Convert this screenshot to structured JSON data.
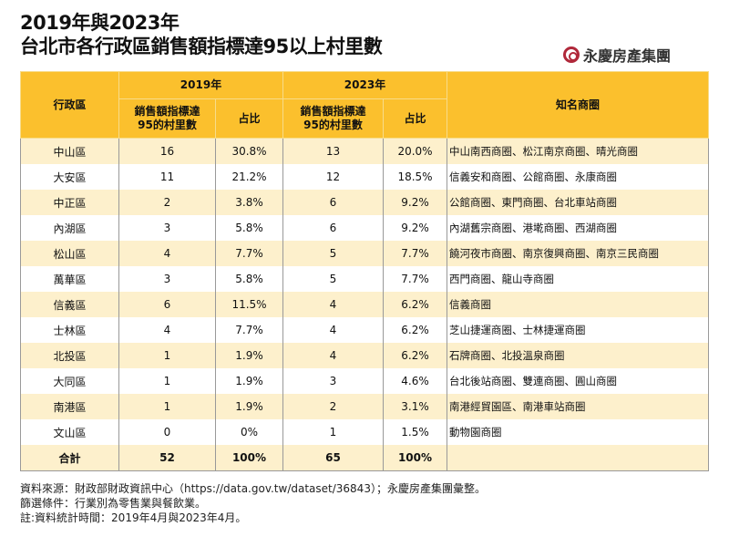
{
  "title": {
    "line1": "2019年與2023年",
    "line2": "台北市各行政區銷售額指標達95以上村里數"
  },
  "logo": {
    "text": "永慶房產集團"
  },
  "table": {
    "headers": {
      "district": "行政區",
      "year1": "2019年",
      "year2": "2023年",
      "count": "銷售額指標達95的村里數",
      "share": "占比",
      "circles": "知名商圈"
    },
    "rows": [
      {
        "district": "中山區",
        "c2019": "16",
        "s2019": "30.8%",
        "c2023": "13",
        "s2023": "20.0%",
        "circles": "中山南西商圈、松江南京商圈、晴光商圈"
      },
      {
        "district": "大安區",
        "c2019": "11",
        "s2019": "21.2%",
        "c2023": "12",
        "s2023": "18.5%",
        "circles": "信義安和商圈、公館商圈、永康商圈"
      },
      {
        "district": "中正區",
        "c2019": "2",
        "s2019": "3.8%",
        "c2023": "6",
        "s2023": "9.2%",
        "circles": "公館商圈、東門商圈、台北車站商圈"
      },
      {
        "district": "內湖區",
        "c2019": "3",
        "s2019": "5.8%",
        "c2023": "6",
        "s2023": "9.2%",
        "circles": "內湖舊宗商圈、港墘商圈、西湖商圈"
      },
      {
        "district": "松山區",
        "c2019": "4",
        "s2019": "7.7%",
        "c2023": "5",
        "s2023": "7.7%",
        "circles": "饒河夜市商圈、南京復興商圈、南京三民商圈"
      },
      {
        "district": "萬華區",
        "c2019": "3",
        "s2019": "5.8%",
        "c2023": "5",
        "s2023": "7.7%",
        "circles": "西門商圈、龍山寺商圈"
      },
      {
        "district": "信義區",
        "c2019": "6",
        "s2019": "11.5%",
        "c2023": "4",
        "s2023": "6.2%",
        "circles": "信義商圈"
      },
      {
        "district": "士林區",
        "c2019": "4",
        "s2019": "7.7%",
        "c2023": "4",
        "s2023": "6.2%",
        "circles": "芝山捷運商圈、士林捷運商圈"
      },
      {
        "district": "北投區",
        "c2019": "1",
        "s2019": "1.9%",
        "c2023": "4",
        "s2023": "6.2%",
        "circles": "石牌商圈、北投溫泉商圈"
      },
      {
        "district": "大同區",
        "c2019": "1",
        "s2019": "1.9%",
        "c2023": "3",
        "s2023": "4.6%",
        "circles": "台北後站商圈、雙連商圈、圓山商圈"
      },
      {
        "district": "南港區",
        "c2019": "1",
        "s2019": "1.9%",
        "c2023": "2",
        "s2023": "3.1%",
        "circles": "南港經貿園區、南港車站商圈"
      },
      {
        "district": "文山區",
        "c2019": "0",
        "s2019": "0%",
        "c2023": "1",
        "s2023": "1.5%",
        "circles": "動物園商圈"
      },
      {
        "district": "合計",
        "c2019": "52",
        "s2019": "100%",
        "c2023": "65",
        "s2023": "100%",
        "circles": ""
      }
    ]
  },
  "notes": [
    "資料來源：財政部財政資訊中心（https://data.gov.tw/dataset/36843）；永慶房產集團彙整。",
    "篩選條件：行業別為零售業與餐飲業。",
    "註:資料統計時間：2019年4月與2023年4月。"
  ]
}
